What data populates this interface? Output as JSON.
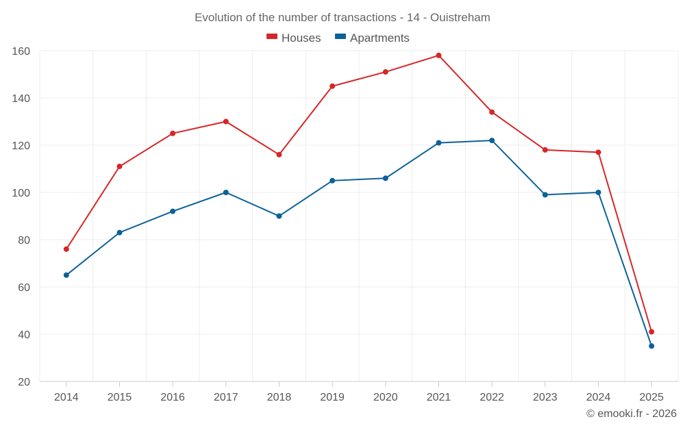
{
  "chart_data": {
    "type": "line",
    "title": "Evolution of the number of transactions - 14 - Ouistreham",
    "categories": [
      "2014",
      "2015",
      "2016",
      "2017",
      "2018",
      "2019",
      "2020",
      "2021",
      "2022",
      "2023",
      "2024",
      "2025"
    ],
    "series": [
      {
        "name": "Houses",
        "color": "#d62728",
        "values": [
          76,
          111,
          125,
          130,
          116,
          145,
          151,
          158,
          134,
          118,
          117,
          41
        ]
      },
      {
        "name": "Apartments",
        "color": "#0b6199",
        "values": [
          65,
          83,
          92,
          100,
          90,
          105,
          106,
          121,
          122,
          99,
          100,
          35
        ]
      }
    ],
    "ylim": [
      20,
      160
    ],
    "yticks": [
      20,
      40,
      60,
      80,
      100,
      120,
      140,
      160
    ],
    "xlabel": "",
    "ylabel": "",
    "grid": true,
    "legend_position": "top-center"
  },
  "credit": "© emooki.fr - 2026"
}
